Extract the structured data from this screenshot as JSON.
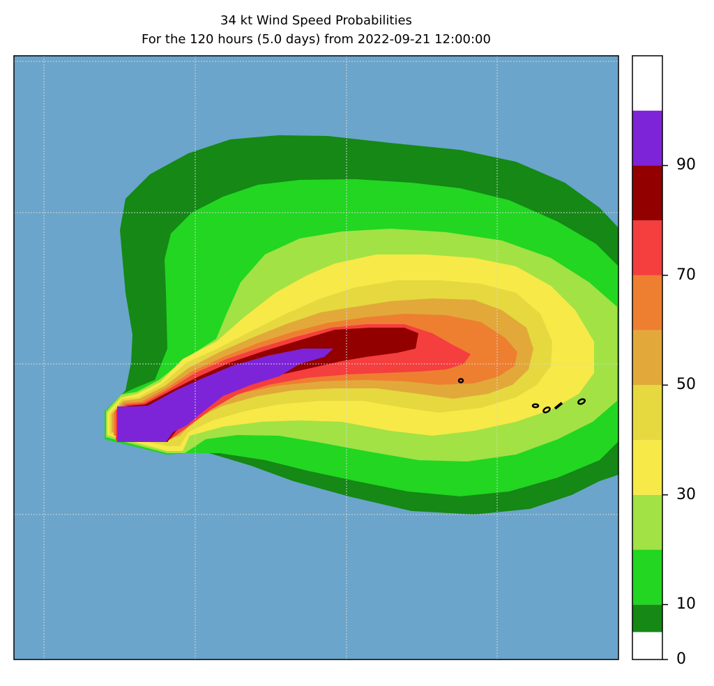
{
  "title": {
    "line1": "34 kt Wind Speed Probabilities",
    "line2": "For the 120 hours (5.0 days) from 2022-09-21 12:00:00"
  },
  "colors": {
    "ocean": "#6ba5cb",
    "levels": [
      "#ffffff",
      "#158815",
      "#22d622",
      "#a2e244",
      "#f7e948",
      "#e5d93f",
      "#e2a93a",
      "#ee7f31",
      "#f53e3e",
      "#930000",
      "#7d24d8"
    ],
    "grid": "#d6d6d6",
    "contour": "#000000"
  },
  "colorbar": {
    "min": 0,
    "max": 110,
    "boundaries": [
      0,
      5,
      10,
      20,
      30,
      40,
      50,
      60,
      70,
      80,
      90,
      100
    ],
    "tick_labels": [
      {
        "value": 0,
        "label": "0"
      },
      {
        "value": 10,
        "label": "10"
      },
      {
        "value": 30,
        "label": "30"
      },
      {
        "value": 50,
        "label": "50"
      },
      {
        "value": 70,
        "label": "70"
      },
      {
        "value": 90,
        "label": "90"
      }
    ]
  }
}
